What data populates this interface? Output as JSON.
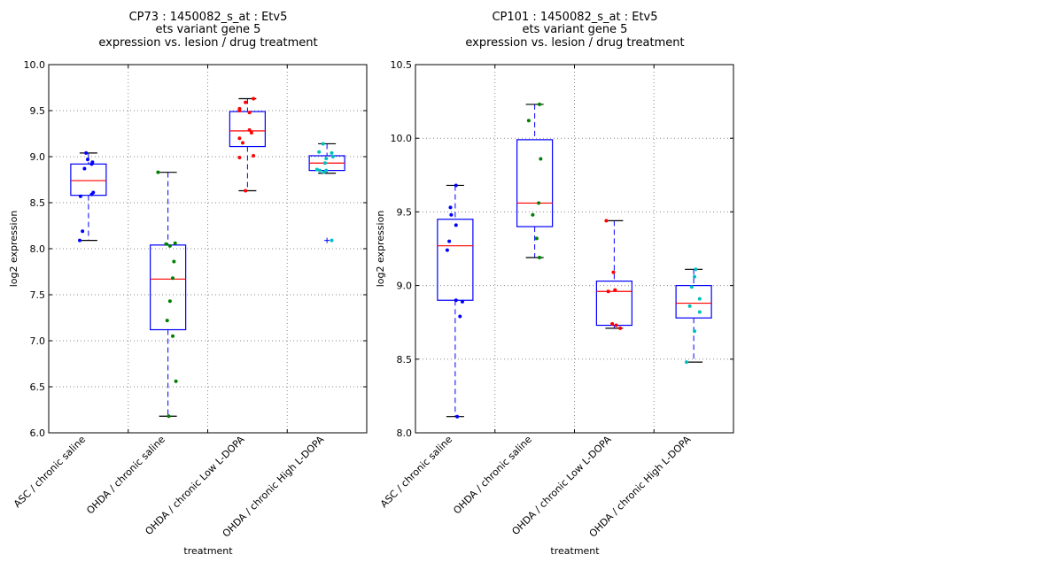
{
  "chart_data": [
    {
      "type": "box",
      "title_lines": [
        "CP73 : 1450082_s_at : Etv5",
        "ets variant gene 5",
        "expression vs. lesion / drug treatment"
      ],
      "xlabel": "treatment",
      "ylabel": "log2 expression",
      "ylim": [
        6.0,
        10.0
      ],
      "yticks": [
        "6.0",
        "6.5",
        "7.0",
        "7.5",
        "8.0",
        "8.5",
        "9.0",
        "9.5",
        "10.0"
      ],
      "ytick_values": [
        6.0,
        6.5,
        7.0,
        7.5,
        8.0,
        8.5,
        9.0,
        9.5,
        10.0
      ],
      "grid": true,
      "categories": [
        "ASC / chronic saline",
        "OHDA / chronic saline",
        "OHDA / chronic Low L-DOPA",
        "OHDA / chronic High L-DOPA"
      ],
      "boxes": [
        {
          "whisker_high": 9.04,
          "q3": 8.92,
          "median": 8.74,
          "q1": 8.58,
          "whisker_low": 8.09,
          "outliers": [],
          "points": [
            {
              "v": 9.04,
              "dx": -0.06
            },
            {
              "v": 8.97,
              "dx": -0.02
            },
            {
              "v": 8.94,
              "dx": 0.1
            },
            {
              "v": 8.92,
              "dx": 0.08
            },
            {
              "v": 8.87,
              "dx": -0.1
            },
            {
              "v": 8.61,
              "dx": 0.12
            },
            {
              "v": 8.59,
              "dx": 0.08
            },
            {
              "v": 8.57,
              "dx": -0.2
            },
            {
              "v": 8.19,
              "dx": -0.15
            },
            {
              "v": 8.09,
              "dx": -0.22
            }
          ],
          "color": "#0000ff"
        },
        {
          "whisker_high": 8.83,
          "q3": 8.04,
          "median": 7.67,
          "q1": 7.12,
          "whisker_low": 6.18,
          "outliers": [],
          "points": [
            {
              "v": 8.83,
              "dx": -0.25
            },
            {
              "v": 8.06,
              "dx": 0.18
            },
            {
              "v": 8.05,
              "dx": -0.05
            },
            {
              "v": 8.03,
              "dx": 0.05
            },
            {
              "v": 7.86,
              "dx": 0.15
            },
            {
              "v": 7.68,
              "dx": 0.12
            },
            {
              "v": 7.43,
              "dx": 0.05
            },
            {
              "v": 7.22,
              "dx": -0.02
            },
            {
              "v": 7.05,
              "dx": 0.12
            },
            {
              "v": 6.56,
              "dx": 0.2
            },
            {
              "v": 6.18,
              "dx": 0.02
            }
          ],
          "color": "#008000"
        },
        {
          "whisker_high": 9.63,
          "q3": 9.49,
          "median": 9.28,
          "q1": 9.11,
          "whisker_low": 8.63,
          "outliers": [],
          "points": [
            {
              "v": 9.63,
              "dx": 0.15
            },
            {
              "v": 9.59,
              "dx": -0.05
            },
            {
              "v": 9.52,
              "dx": -0.2
            },
            {
              "v": 9.5,
              "dx": -0.2
            },
            {
              "v": 9.48,
              "dx": 0.05
            },
            {
              "v": 9.29,
              "dx": 0.05
            },
            {
              "v": 9.26,
              "dx": 0.1
            },
            {
              "v": 9.2,
              "dx": -0.2
            },
            {
              "v": 9.15,
              "dx": -0.12
            },
            {
              "v": 9.01,
              "dx": 0.15
            },
            {
              "v": 8.99,
              "dx": -0.2
            },
            {
              "v": 8.63,
              "dx": -0.05
            }
          ],
          "color": "#ff0000"
        },
        {
          "whisker_high": 9.14,
          "q3": 9.01,
          "median": 8.93,
          "q1": 8.85,
          "whisker_low": 8.82,
          "outliers": [
            8.09
          ],
          "points": [
            {
              "v": 9.14,
              "dx": -0.1
            },
            {
              "v": 9.05,
              "dx": -0.2
            },
            {
              "v": 9.04,
              "dx": 0.12
            },
            {
              "v": 9.0,
              "dx": 0.15
            },
            {
              "v": 8.98,
              "dx": -0.02
            },
            {
              "v": 8.93,
              "dx": -0.05
            },
            {
              "v": 8.86,
              "dx": -0.25
            },
            {
              "v": 8.85,
              "dx": -0.18
            },
            {
              "v": 8.85,
              "dx": -0.02
            },
            {
              "v": 8.83,
              "dx": -0.08
            },
            {
              "v": 8.09,
              "dx": 0.12
            }
          ],
          "color": "#00bfbf"
        }
      ]
    },
    {
      "type": "box",
      "title_lines": [
        "CP101 : 1450082_s_at : Etv5",
        "ets variant gene 5",
        "expression vs. lesion / drug treatment"
      ],
      "xlabel": "treatment",
      "ylabel": "log2 expression",
      "ylim": [
        8.0,
        10.5
      ],
      "yticks": [
        "8.0",
        "8.5",
        "9.0",
        "9.5",
        "10.0",
        "10.5"
      ],
      "ytick_values": [
        8.0,
        8.5,
        9.0,
        9.5,
        10.0,
        10.5
      ],
      "grid": true,
      "categories": [
        "ASC / chronic saline",
        "OHDA / chronic saline",
        "OHDA / chronic Low L-DOPA",
        "OHDA / chronic High L-DOPA"
      ],
      "boxes": [
        {
          "whisker_high": 9.68,
          "q3": 9.45,
          "median": 9.27,
          "q1": 8.9,
          "whisker_low": 8.11,
          "outliers": [],
          "points": [
            {
              "v": 9.68,
              "dx": 0.02
            },
            {
              "v": 9.53,
              "dx": -0.12
            },
            {
              "v": 9.48,
              "dx": -0.1
            },
            {
              "v": 9.41,
              "dx": 0.02
            },
            {
              "v": 9.3,
              "dx": -0.15
            },
            {
              "v": 9.24,
              "dx": -0.2
            },
            {
              "v": 8.9,
              "dx": 0.02
            },
            {
              "v": 8.89,
              "dx": 0.18
            },
            {
              "v": 8.79,
              "dx": 0.12
            },
            {
              "v": 8.11,
              "dx": 0.05
            }
          ],
          "color": "#0000ff"
        },
        {
          "whisker_high": 10.23,
          "q3": 9.99,
          "median": 9.56,
          "q1": 9.4,
          "whisker_low": 9.19,
          "outliers": [],
          "points": [
            {
              "v": 10.23,
              "dx": 0.12
            },
            {
              "v": 10.12,
              "dx": -0.15
            },
            {
              "v": 9.86,
              "dx": 0.15
            },
            {
              "v": 9.56,
              "dx": 0.1
            },
            {
              "v": 9.48,
              "dx": -0.05
            },
            {
              "v": 9.32,
              "dx": 0.05
            },
            {
              "v": 9.19,
              "dx": 0.12
            }
          ],
          "color": "#008000"
        },
        {
          "whisker_high": 9.44,
          "q3": 9.03,
          "median": 8.96,
          "q1": 8.73,
          "whisker_low": 8.71,
          "outliers": [],
          "points": [
            {
              "v": 9.44,
              "dx": -0.2
            },
            {
              "v": 9.09,
              "dx": -0.02
            },
            {
              "v": 8.96,
              "dx": -0.15
            },
            {
              "v": 8.97,
              "dx": 0.02
            },
            {
              "v": 8.74,
              "dx": -0.05
            },
            {
              "v": 8.73,
              "dx": 0.05
            },
            {
              "v": 8.71,
              "dx": 0.15
            }
          ],
          "color": "#ff0000"
        },
        {
          "whisker_high": 9.11,
          "q3": 9.0,
          "median": 8.88,
          "q1": 8.78,
          "whisker_low": 8.48,
          "outliers": [],
          "points": [
            {
              "v": 9.11,
              "dx": 0.05
            },
            {
              "v": 9.06,
              "dx": 0.02
            },
            {
              "v": 8.99,
              "dx": -0.05
            },
            {
              "v": 8.91,
              "dx": 0.15
            },
            {
              "v": 8.86,
              "dx": -0.1
            },
            {
              "v": 8.82,
              "dx": 0.15
            },
            {
              "v": 8.69,
              "dx": 0.02
            },
            {
              "v": 8.48,
              "dx": -0.18
            }
          ],
          "color": "#00bfbf"
        }
      ]
    }
  ]
}
